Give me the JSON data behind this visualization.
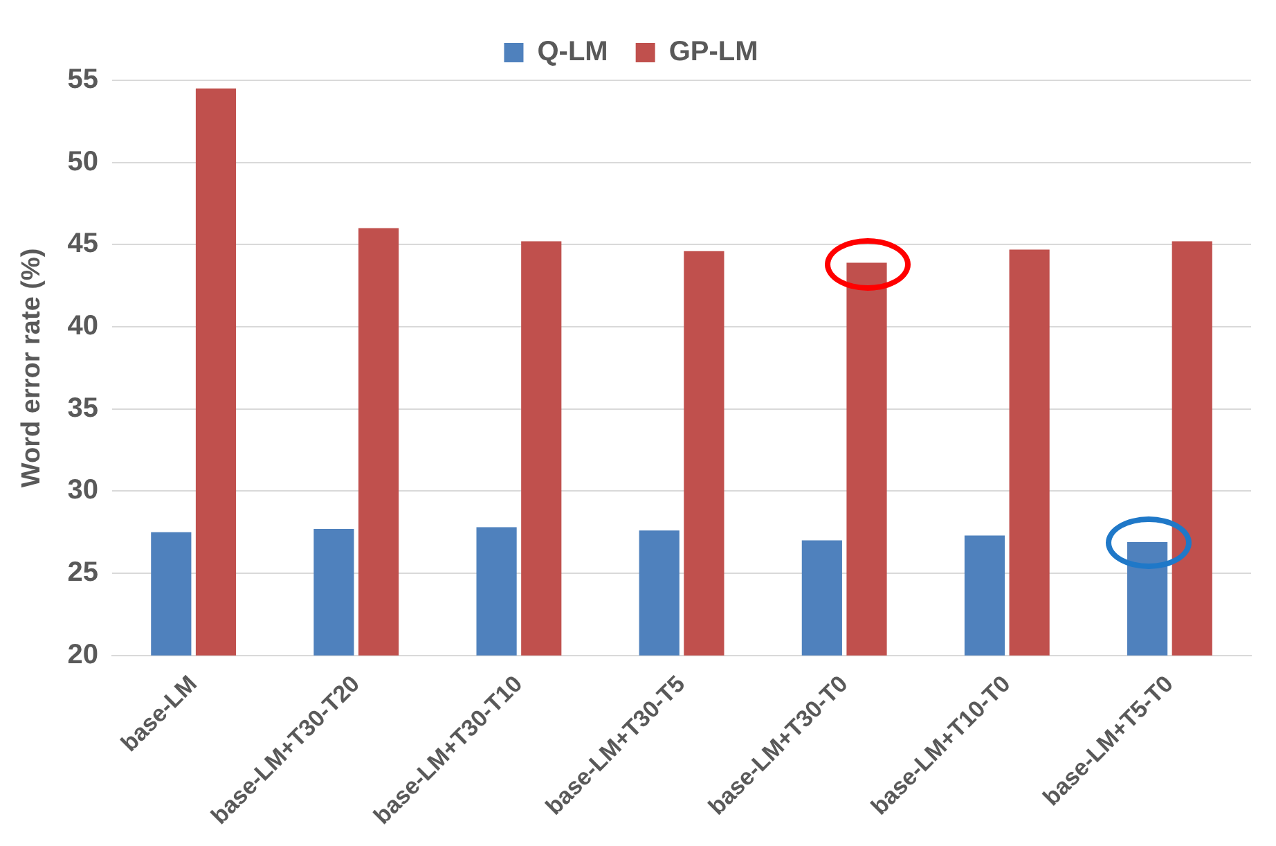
{
  "chart_data": {
    "type": "bar",
    "ylabel": "Word error rate (%)",
    "categories": [
      "base-LM",
      "base-LM+T30-T20",
      "base-LM+T30-T10",
      "base-LM+T30-T5",
      "base-LM+T30-T0",
      "base-LM+T10-T0",
      "base-LM+T5-T0"
    ],
    "series": [
      {
        "name": "Q-LM",
        "color": "#4f81bd",
        "values": [
          27.5,
          27.7,
          27.8,
          27.6,
          27.0,
          27.3,
          26.9
        ]
      },
      {
        "name": "GP-LM",
        "color": "#c0504d",
        "values": [
          54.5,
          46.0,
          45.2,
          44.6,
          43.9,
          44.7,
          45.2
        ]
      }
    ],
    "ylim": [
      20,
      55
    ],
    "yticks": [
      20,
      25,
      30,
      35,
      40,
      45,
      50,
      55
    ],
    "grid": "y",
    "legend": "top"
  }
}
